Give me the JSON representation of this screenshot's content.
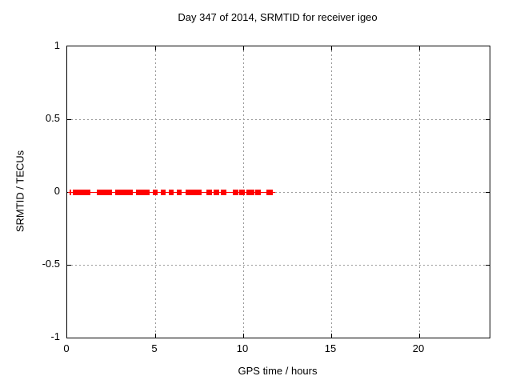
{
  "chart_data": {
    "type": "line",
    "title": "Day 347 of 2014, SRMTID for receiver igeo",
    "xlabel": "GPS time / hours",
    "ylabel": "SRMTID / TECUs",
    "xlim": [
      0,
      24
    ],
    "ylim": [
      -1,
      1
    ],
    "xticks": [
      0,
      5,
      10,
      15,
      20
    ],
    "yticks": [
      1,
      0.5,
      0,
      -0.5,
      -1
    ],
    "ytick_labels": [
      "1",
      "0.5",
      "0",
      "-0.5",
      "-1"
    ],
    "grid": true,
    "legend": "none",
    "series": [
      {
        "name": "SRMTID",
        "color": "#ff0000",
        "constant_value": 0,
        "extent_hours": [
          0.05,
          11.8
        ],
        "segments_hours": [
          [
            0.14,
            0.23
          ],
          [
            0.32,
            1.32
          ],
          [
            1.68,
            2.55
          ],
          [
            2.73,
            3.73
          ],
          [
            3.91,
            4.68
          ],
          [
            4.86,
            5.14
          ],
          [
            5.32,
            5.59
          ],
          [
            5.77,
            6.05
          ],
          [
            6.23,
            6.5
          ],
          [
            6.73,
            7.64
          ],
          [
            7.91,
            8.23
          ],
          [
            8.32,
            8.64
          ],
          [
            8.73,
            9.05
          ],
          [
            9.41,
            9.73
          ],
          [
            9.77,
            10.09
          ],
          [
            10.18,
            10.64
          ],
          [
            10.68,
            11.0
          ],
          [
            11.32,
            11.68
          ]
        ]
      }
    ],
    "colors": {
      "series_red": "#ff0000",
      "grid_gray": "#9a9a9a",
      "border_black": "#000000",
      "background": "#ffffff"
    }
  }
}
